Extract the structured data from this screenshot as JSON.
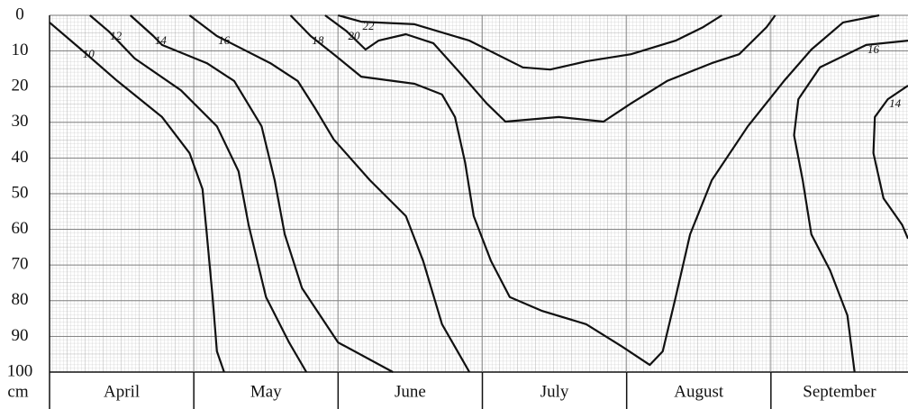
{
  "chart_data": {
    "type": "contour",
    "y_label": "cm",
    "categories": [
      "April",
      "May",
      "June",
      "July",
      "August",
      "September"
    ],
    "xlim": [
      0,
      5.95
    ],
    "ylim": [
      0,
      100
    ],
    "yticks": [
      0,
      10,
      20,
      30,
      40,
      50,
      60,
      70,
      80,
      90,
      100
    ],
    "y_inverted": true,
    "grid": true,
    "color": "#111111",
    "series": [
      {
        "name": "10",
        "x": [
          0,
          0.22,
          0.47,
          0.78,
          0.97,
          1.06,
          1.09,
          1.13,
          1.16,
          1.21
        ],
        "y": [
          2,
          9.6,
          18.4,
          28.5,
          38.6,
          48.7,
          61.4,
          79,
          94.2,
          100
        ]
      },
      {
        "name": "12",
        "x": [
          0.28,
          0.41,
          0.59,
          0.91,
          1.16,
          1.31,
          1.38,
          1.5,
          1.66,
          1.78
        ],
        "y": [
          0,
          4.5,
          12.1,
          21,
          31.1,
          43.7,
          58.8,
          79,
          91.7,
          100
        ]
      },
      {
        "name": "14",
        "x": [
          0.56,
          0.72,
          0.78,
          1.09,
          1.28,
          1.47,
          1.56,
          1.63,
          1.75,
          2,
          2.38
        ],
        "y": [
          0,
          5.8,
          8.3,
          13.4,
          18.4,
          31.1,
          46.2,
          61.4,
          76.5,
          91.7,
          100
        ]
      },
      {
        "name": "16",
        "x": [
          0.97,
          1.16,
          1.53,
          1.72,
          1.84,
          1.97,
          2.22,
          2.47,
          2.59,
          2.72,
          2.91
        ],
        "y": [
          0,
          5.8,
          13.4,
          18.4,
          26,
          34.8,
          46.2,
          56.3,
          68.9,
          86.6,
          100
        ]
      },
      {
        "name": "18",
        "x": [
          1.67,
          1.81,
          1.97,
          2.16,
          2.53,
          2.72,
          2.81,
          2.88,
          2.94,
          3.06,
          3.19,
          3.41,
          3.72,
          3.97,
          4.16,
          4.25,
          4.34,
          4.44,
          4.59,
          4.84,
          5.09,
          5.28,
          5.5,
          5.75
        ],
        "y": [
          0,
          5.8,
          10.9,
          17.2,
          19.2,
          22.2,
          28.5,
          41.2,
          56.3,
          68.9,
          79,
          82.8,
          86.6,
          92.9,
          98,
          94.2,
          79,
          61.4,
          46.2,
          31.1,
          18.4,
          9.6,
          2,
          0
        ]
      },
      {
        "name": "20",
        "x": [
          1.91,
          2.06,
          2.19,
          2.28,
          2.47,
          2.66,
          2.84,
          3.03,
          3.16,
          3.53,
          3.84,
          4.03,
          4.28,
          4.59,
          4.78,
          4.97,
          5.03
        ],
        "y": [
          0,
          4.5,
          9.6,
          7.1,
          5.3,
          7.8,
          15.9,
          24.7,
          29.8,
          28.5,
          29.8,
          24.7,
          18.4,
          13.4,
          10.9,
          3.3,
          0
        ]
      },
      {
        "name": "22",
        "x": [
          2,
          2.16,
          2.53,
          2.91,
          3.28,
          3.47,
          3.72,
          4.03,
          4.34,
          4.53,
          4.66
        ],
        "y": [
          0,
          1.8,
          2.5,
          7.1,
          14.6,
          15.2,
          12.9,
          10.9,
          7.1,
          3.3,
          0
        ]
      },
      {
        "name": "16",
        "x": [
          5.95,
          5.66,
          5.34,
          5.19,
          5.16,
          5.22,
          5.28,
          5.41,
          5.53,
          5.58
        ],
        "y": [
          7.1,
          8.3,
          14.6,
          23.5,
          33.6,
          46.2,
          61.4,
          71.5,
          84.1,
          100
        ]
      },
      {
        "name": "14",
        "x": [
          5.95,
          5.81,
          5.72,
          5.71,
          5.78,
          5.91,
          5.95
        ],
        "y": [
          19.7,
          23.5,
          28.5,
          38.6,
          51.3,
          58.8,
          62.6
        ]
      }
    ]
  }
}
